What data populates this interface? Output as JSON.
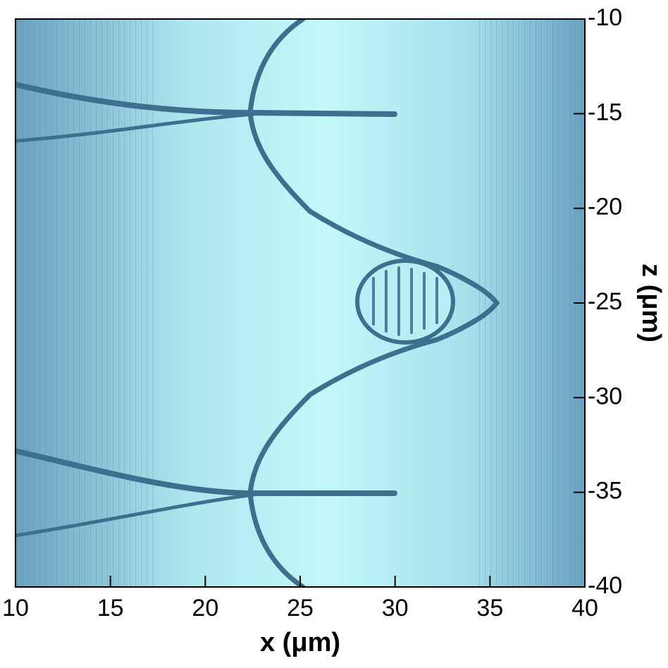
{
  "chart_data": {
    "type": "contour",
    "xlabel": "x (μm)",
    "ylabel": "z (μm)",
    "xlim": [
      10,
      40
    ],
    "xticks": [
      10,
      15,
      20,
      25,
      30,
      35,
      40
    ],
    "ylim": [
      -10,
      -40
    ],
    "yticks": [
      -10,
      -15,
      -20,
      -25,
      -30,
      -35,
      -40
    ]
  }
}
